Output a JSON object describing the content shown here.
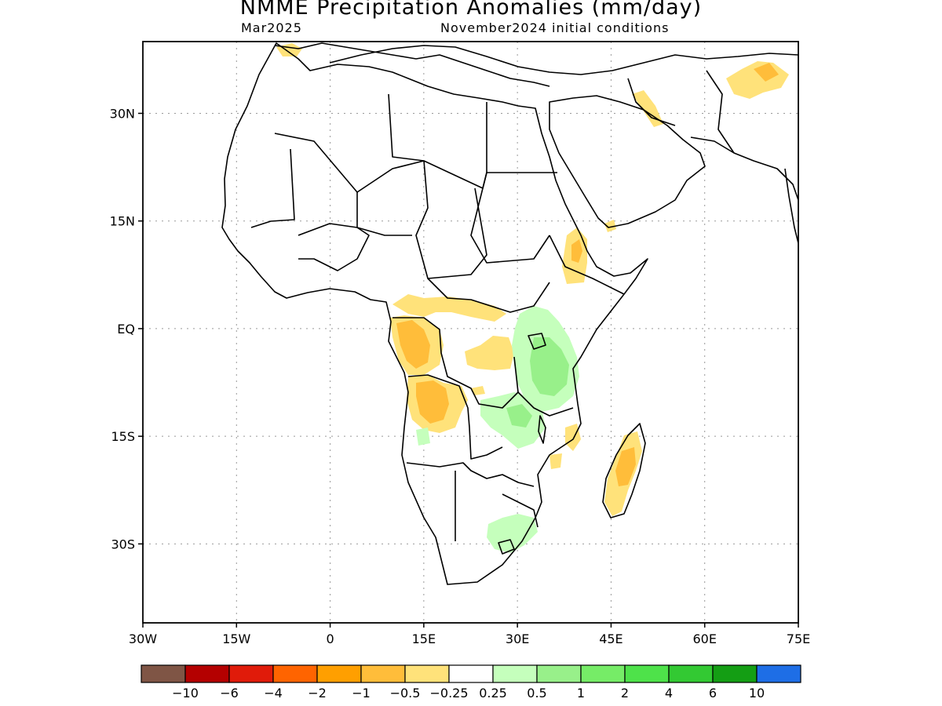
{
  "title": "NMME Precipitation Anomalies (mm/day)",
  "valid_month": "Mar2025",
  "initial_conditions": "November2024 initial conditions",
  "map": {
    "lon_range": [
      -30,
      75
    ],
    "lat_range": [
      -41,
      40
    ],
    "lon_ticks": [
      {
        "value": -30,
        "label": "30W"
      },
      {
        "value": -15,
        "label": "15W"
      },
      {
        "value": 0,
        "label": "0"
      },
      {
        "value": 15,
        "label": "15E"
      },
      {
        "value": 30,
        "label": "30E"
      },
      {
        "value": 45,
        "label": "45E"
      },
      {
        "value": 60,
        "label": "60E"
      },
      {
        "value": 75,
        "label": "75E"
      }
    ],
    "lat_ticks": [
      {
        "value": 30,
        "label": "30N"
      },
      {
        "value": 15,
        "label": "15N"
      },
      {
        "value": 0,
        "label": "EQ"
      },
      {
        "value": -15,
        "label": "15S"
      },
      {
        "value": -30,
        "label": "30S"
      }
    ],
    "grid": "dotted"
  },
  "colorbar": {
    "colors": [
      "#7f5545",
      "#b40000",
      "#e01b0a",
      "#ff6400",
      "#ff9f00",
      "#ffbd3a",
      "#ffe27a",
      "#ffffff",
      "#c5ffbc",
      "#98f08a",
      "#76ec67",
      "#4ee24a",
      "#33c933",
      "#149e14",
      "#1e6ee6"
    ],
    "labels": [
      "−10",
      "−6",
      "−4",
      "−2",
      "−1",
      "−0.5",
      "−0.25",
      "0.25",
      "0.5",
      "1",
      "2",
      "4",
      "6",
      "10"
    ]
  },
  "colors": {
    "light_dry": "#ffe27a",
    "moderate_dry": "#ffbd3a",
    "light_wet": "#c5ffbc",
    "moderate_wet": "#98f08a"
  }
}
